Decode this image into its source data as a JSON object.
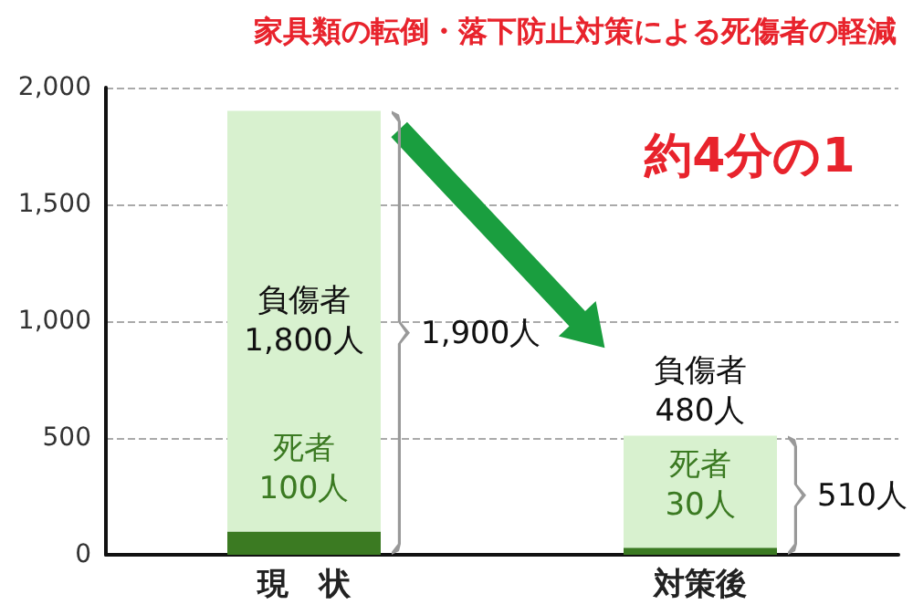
{
  "chart_data": {
    "type": "bar",
    "title": "家具類の転倒・落下防止対策による死傷者の軽減",
    "categories": [
      "現　状",
      "対策後"
    ],
    "stacked": true,
    "series": [
      {
        "name": "死者",
        "color": "#3b7a22",
        "values": [
          100,
          30
        ],
        "value_labels": [
          "100人",
          "30人"
        ]
      },
      {
        "name": "負傷者",
        "color": "#d8f1cf",
        "values": [
          1800,
          480
        ],
        "value_labels": [
          "1,800人",
          "480人"
        ]
      }
    ],
    "totals": [
      "1,900人",
      "510人"
    ],
    "annotations": [
      "約4分の1"
    ],
    "ylim": [
      0,
      2000
    ],
    "yticks": [
      0,
      500,
      {
        "value": 1000,
        "label": "1,000"
      },
      {
        "value": 1500,
        "label": "1,500"
      },
      {
        "value": 2000,
        "label": "2,000"
      }
    ],
    "grid": "y",
    "legend": false
  }
}
